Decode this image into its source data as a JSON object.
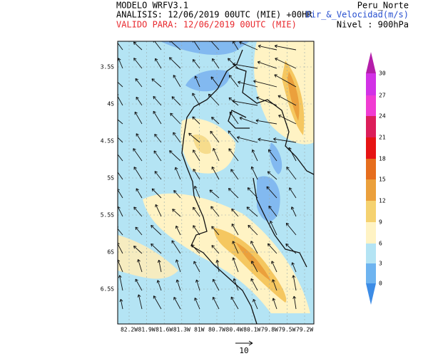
{
  "header": {
    "model": "MODELO WRFV3.1",
    "analysis": "ANALISIS: 12/06/2019 00UTC (MIE) +00HR",
    "valid": "VALIDO PARA: 12/06/2019 00UTC (MIE)",
    "region": "Peru_Norte",
    "variable": "Dir_&_Velocidad(m/s)",
    "level": "Nivel : 900hPa"
  },
  "map": {
    "lat_labels": [
      "3.5S",
      "4S",
      "4.5S",
      "5S",
      "5.5S",
      "6S",
      "6.5S"
    ],
    "lon_labels": [
      "82.2W",
      "81.9W",
      "81.6W",
      "81.3W",
      "81W",
      "80.7W",
      "80.4W",
      "80.1W",
      "79.8W",
      "79.5W",
      "79.2W"
    ]
  },
  "colorbar": {
    "labels": [
      "0",
      "3",
      "6",
      "9",
      "12",
      "15",
      "18",
      "21",
      "24",
      "27",
      "30"
    ]
  },
  "reference_vector": {
    "label": "10"
  }
}
